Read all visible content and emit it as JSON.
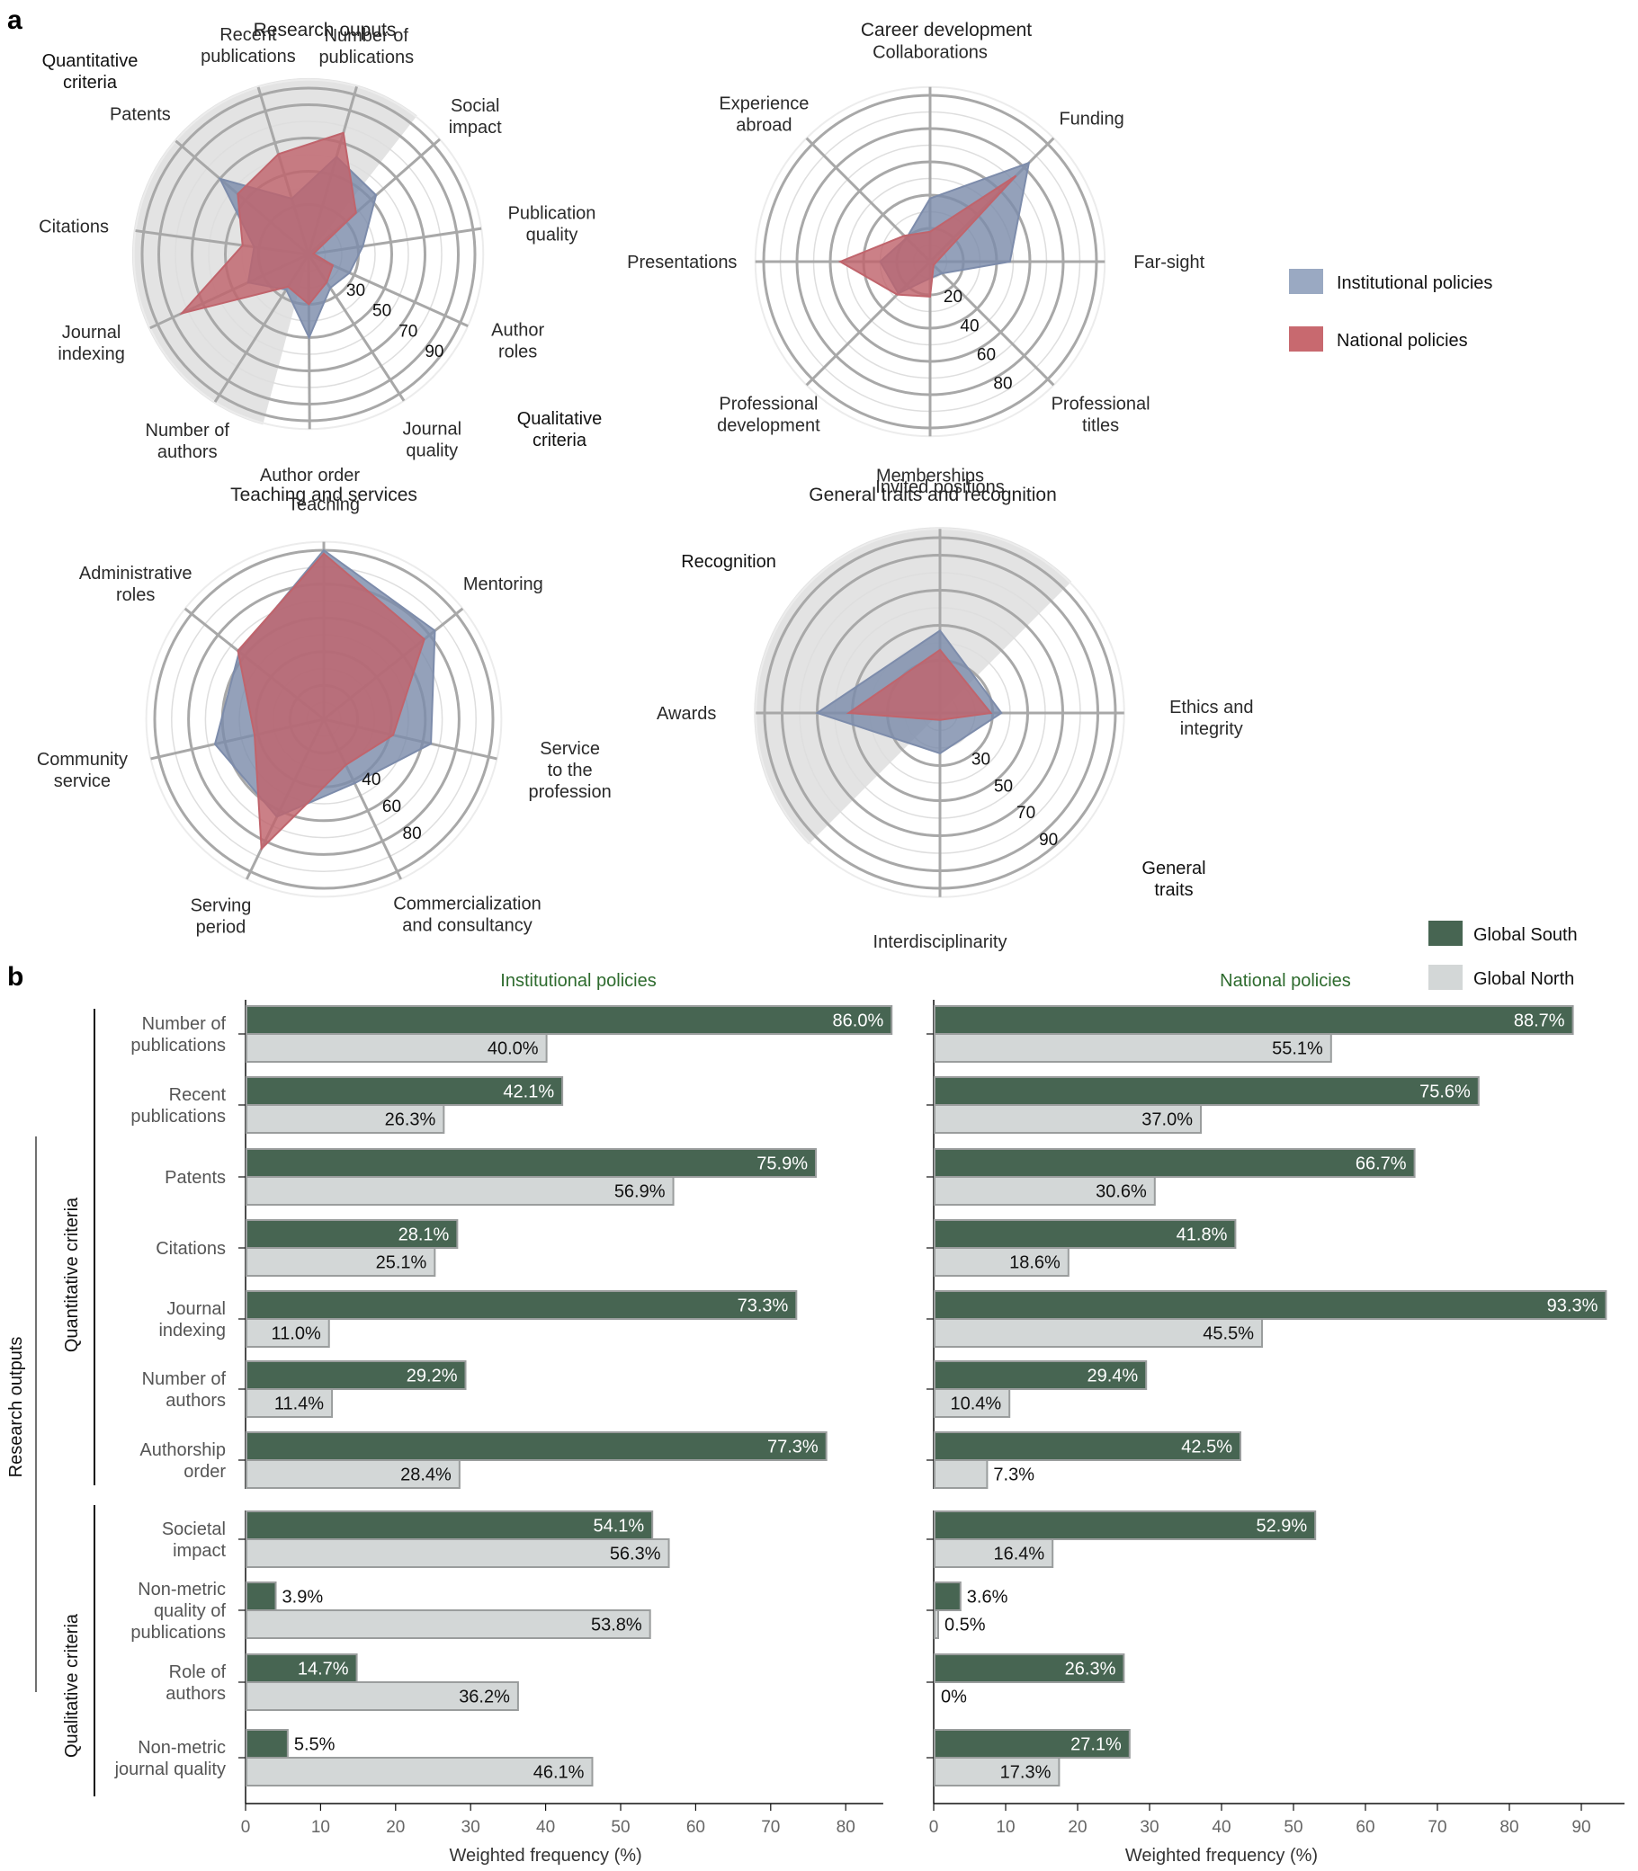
{
  "panel_labels": {
    "a": "a",
    "b": "b"
  },
  "colors": {
    "institutional": "#7d8cab",
    "national": "#c0646c",
    "legend_institutional": "#9aa9c2",
    "legend_national": "#c8696f",
    "global_south": "#476552",
    "global_north": "#d3d7d7",
    "bar_edge": "#9a9d9d",
    "panel_title": "#2e6b2e",
    "grid": "#a8a8a8",
    "sector_shade": "#e3e3e3"
  },
  "radar_legend": [
    {
      "key": "institutional",
      "label": "Institutional  policies"
    },
    {
      "key": "national",
      "label": "National  policies"
    }
  ],
  "bar_legend": [
    {
      "key": "global_south",
      "label": "Global South"
    },
    {
      "key": "global_north",
      "label": "Global North"
    }
  ],
  "chart_data": [
    {
      "type": "radar",
      "id": "research-outputs",
      "title": "Research ouputs",
      "axes": [
        "Number of publications",
        "Social impact",
        "Publication quality",
        "Author roles",
        "Journal quality",
        "Author order",
        "Number of authors",
        "Journal indexing",
        "Citations",
        "Patents",
        "Recent publications"
      ],
      "axis_label_lines": [
        [
          "Number of",
          "publications"
        ],
        [
          "Social",
          "impact"
        ],
        [
          "Publication",
          "quality"
        ],
        [
          "Author",
          "roles"
        ],
        [
          "Journal",
          "quality"
        ],
        [
          "Author order"
        ],
        [
          "Number of",
          "authors"
        ],
        [
          "Journal",
          "indexing"
        ],
        [
          "Citations"
        ],
        [
          "Patents"
        ],
        [
          "Recent",
          "publications"
        ]
      ],
      "ring_labels": [
        "30",
        "50",
        "70",
        "90"
      ],
      "rlim": [
        0,
        100
      ],
      "group_labels": [
        {
          "lines": [
            "Quantitative",
            "criteria"
          ],
          "position": "top-left"
        },
        {
          "lines": [
            "Qualitative",
            "criteria"
          ],
          "position": "bottom-right"
        }
      ],
      "shaded_sector": "Quantitative criteria (Author order through Number of publications)",
      "series": [
        {
          "name": "Institutional policies",
          "values": [
            61,
            54,
            33,
            27,
            24,
            50,
            25,
            40,
            33,
            70,
            35
          ]
        },
        {
          "name": "National policies",
          "values": [
            76,
            38,
            3,
            16,
            20,
            30,
            23,
            84,
            40,
            56,
            63
          ]
        }
      ]
    },
    {
      "type": "radar",
      "id": "career-development",
      "title": "Career development",
      "axes": [
        "Collaborations",
        "Funding",
        "Far-sight",
        "Professional titles",
        "Memberships",
        "Professional development",
        "Presentations",
        "Experience abroad"
      ],
      "axis_label_lines": [
        [
          "Collaborations"
        ],
        [
          "Funding"
        ],
        [
          "Far-sight"
        ],
        [
          "Professional",
          "titles"
        ],
        [
          "Memberships"
        ],
        [
          "Professional",
          "development"
        ],
        [
          "Presentations"
        ],
        [
          "Experience",
          "abroad"
        ]
      ],
      "ring_labels": [
        "20",
        "40",
        "60",
        "80"
      ],
      "rlim": [
        0,
        100
      ],
      "series": [
        {
          "name": "Institutional policies",
          "values": [
            38,
            84,
            48,
            10,
            10,
            27,
            30,
            20
          ]
        },
        {
          "name": "National policies",
          "values": [
            18,
            73,
            4,
            3,
            21,
            28,
            54,
            22
          ]
        }
      ]
    },
    {
      "type": "radar",
      "id": "teaching-and-services",
      "title": "Teaching and services",
      "axes": [
        "Teaching",
        "Mentoring",
        "Service to the profession",
        "Commercialization and consultancy",
        "Serving period",
        "Community service",
        "Administrative roles"
      ],
      "axis_label_lines": [
        [
          "Teaching"
        ],
        [
          "Mentoring"
        ],
        [
          "Service",
          "to the",
          "profession"
        ],
        [
          "Commercialization",
          "and consultancy"
        ],
        [
          "Serving",
          "period"
        ],
        [
          "Community",
          "service"
        ],
        [
          "Administrative",
          "roles"
        ]
      ],
      "ring_labels": [
        "40",
        "60",
        "80"
      ],
      "rlim": [
        0,
        100
      ],
      "series": [
        {
          "name": "Institutional policies",
          "values": [
            100,
            84,
            65,
            42,
            64,
            66,
            64
          ]
        },
        {
          "name": "National policies",
          "values": [
            98,
            76,
            42,
            30,
            85,
            42,
            65
          ]
        }
      ]
    },
    {
      "type": "radar",
      "id": "general-traits-and-recognition",
      "title": "General traits and recognition",
      "axes": [
        "Invited positions",
        "Ethics and integrity",
        "Interdisciplinarity",
        "Awards"
      ],
      "axis_label_lines": [
        [
          "Invited positions"
        ],
        [
          "Ethics and",
          "integrity"
        ],
        [
          "Interdisciplinarity"
        ],
        [
          "Awards"
        ]
      ],
      "ring_labels": [
        "30",
        "50",
        "70",
        "90"
      ],
      "rlim": [
        0,
        100
      ],
      "group_labels": [
        {
          "lines": [
            "Recognition"
          ],
          "position": "top-left"
        },
        {
          "lines": [
            "General",
            "traits"
          ],
          "position": "bottom-right"
        }
      ],
      "shaded_sector": "Recognition (Awards through Invited positions)",
      "series": [
        {
          "name": "Institutional policies",
          "values": [
            47,
            35,
            23,
            70
          ]
        },
        {
          "name": "National policies",
          "values": [
            36,
            29,
            4,
            52
          ]
        }
      ]
    },
    {
      "type": "bar",
      "id": "institutional-policies-bars",
      "orientation": "horizontal",
      "title": "Institutional policies",
      "xlabel": "Weighted frequency (%)",
      "xlim": [
        0,
        85
      ],
      "xticks": [
        0,
        10,
        20,
        30,
        40,
        50,
        60,
        70,
        80
      ],
      "categories": [
        "Number of publications",
        "Recent publications",
        "Patents",
        "Citations",
        "Journal indexing",
        "Number of authors",
        "Authorship order",
        "Societal impact",
        "Non-metric quality of publications",
        "Role of authors",
        "Non-metric journal quality"
      ],
      "category_label_lines": [
        [
          "Number of",
          "publications"
        ],
        [
          "Recent",
          "publications"
        ],
        [
          "Patents"
        ],
        [
          "Citations"
        ],
        [
          "Journal",
          "indexing"
        ],
        [
          "Number of",
          "authors"
        ],
        [
          "Authorship",
          "order"
        ],
        [
          "Societal",
          "impact"
        ],
        [
          "Non-metric",
          "quality of",
          "publications"
        ],
        [
          "Role of",
          "authors"
        ],
        [
          "Non-metric",
          "journal quality"
        ]
      ],
      "series": [
        {
          "name": "Global South",
          "values": [
            86.0,
            42.1,
            75.9,
            28.1,
            73.3,
            29.2,
            77.3,
            54.1,
            3.9,
            14.7,
            5.5
          ],
          "labels": [
            "86.0%",
            "42.1%",
            "75.9%",
            "28.1%",
            "73.3%",
            "29.2%",
            "77.3%",
            "54.1%",
            "3.9%",
            "14.7%",
            "5.5%"
          ]
        },
        {
          "name": "Global North",
          "values": [
            40.0,
            26.3,
            56.9,
            25.1,
            11.0,
            11.4,
            28.4,
            56.3,
            53.8,
            36.2,
            46.1
          ],
          "labels": [
            "40.0%",
            "26.3%",
            "56.9%",
            "25.1%",
            "11.0%",
            "11.4%",
            "28.4%",
            "56.3%",
            "53.8%",
            "36.2%",
            "46.1%"
          ]
        }
      ]
    },
    {
      "type": "bar",
      "id": "national-policies-bars",
      "orientation": "horizontal",
      "title": "National policies",
      "xlabel": "Weighted frequency (%)",
      "xlim": [
        0,
        96
      ],
      "xticks": [
        0,
        10,
        20,
        30,
        40,
        50,
        60,
        70,
        80,
        90
      ],
      "categories": [
        "Number of publications",
        "Recent publications",
        "Patents",
        "Citations",
        "Journal indexing",
        "Number of authors",
        "Authorship order",
        "Societal impact",
        "Non-metric quality of publications",
        "Role of authors",
        "Non-metric journal quality"
      ],
      "series": [
        {
          "name": "Global South",
          "values": [
            88.7,
            75.6,
            66.7,
            41.8,
            93.3,
            29.4,
            42.5,
            52.9,
            3.6,
            26.3,
            27.1
          ],
          "labels": [
            "88.7%",
            "75.6%",
            "66.7%",
            "41.8%",
            "93.3%",
            "29.4%",
            "42.5%",
            "52.9%",
            "3.6%",
            "26.3%",
            "27.1%"
          ]
        },
        {
          "name": "Global North",
          "values": [
            55.1,
            37.0,
            30.6,
            18.6,
            45.5,
            10.4,
            7.3,
            16.4,
            0.5,
            0,
            17.3
          ],
          "labels": [
            "55.1%",
            "37.0%",
            "30.6%",
            "18.6%",
            "45.5%",
            "10.4%",
            "7.3%",
            "16.4%",
            "0.5%",
            "0%",
            "17.3%"
          ]
        }
      ]
    }
  ],
  "bar_groups": {
    "outer": "Research outputs",
    "quantitative": "Quantitative criteria",
    "qualitative": "Qualitative criteria",
    "quantitative_count": 7
  }
}
